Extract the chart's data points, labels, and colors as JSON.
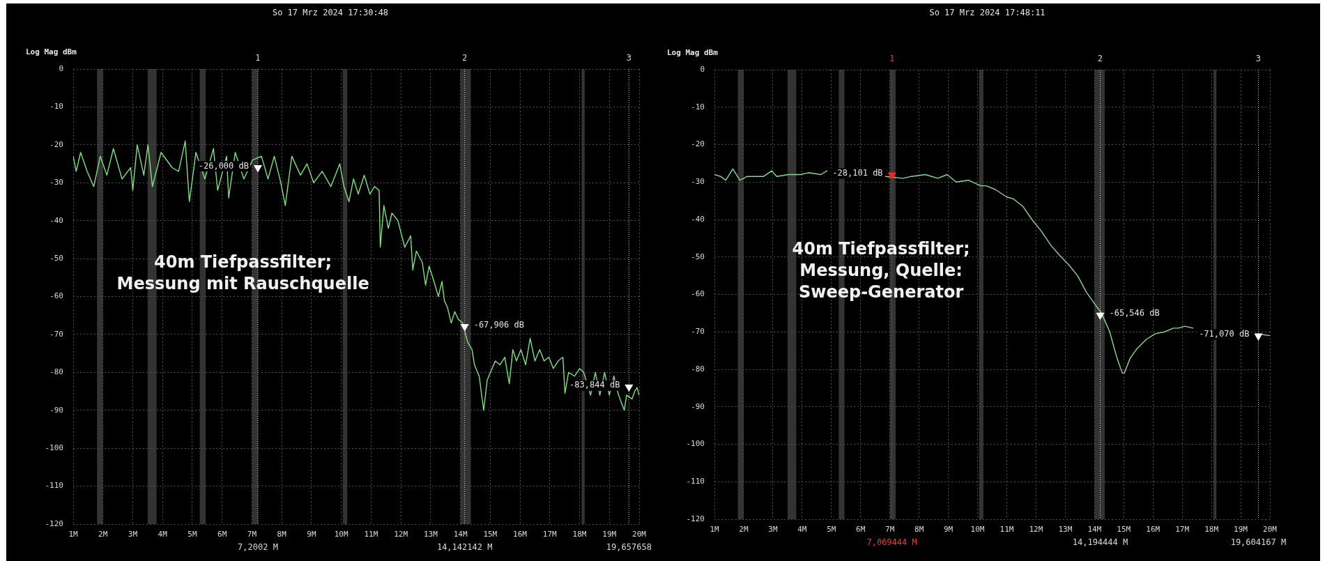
{
  "chart_data": [
    {
      "type": "line",
      "title": "So 17 Mrz 2024 17:30:48",
      "ylabel": "Log Mag dBm",
      "xlim": [
        1,
        20
      ],
      "xticks": [
        {
          "value": 1,
          "label": "1M"
        },
        {
          "value": 2,
          "label": "2M"
        },
        {
          "value": 3,
          "label": "3M"
        },
        {
          "value": 4,
          "label": "4M"
        },
        {
          "value": 5,
          "label": "5M"
        },
        {
          "value": 6,
          "label": "6M"
        },
        {
          "value": 7,
          "label": "7M"
        },
        {
          "value": 8,
          "label": "8M"
        },
        {
          "value": 9,
          "label": "9M"
        },
        {
          "value": 10,
          "label": "10M"
        },
        {
          "value": 11,
          "label": "11M"
        },
        {
          "value": 12,
          "label": "12M"
        },
        {
          "value": 13,
          "label": "13M"
        },
        {
          "value": 14,
          "label": "14M"
        },
        {
          "value": 15,
          "label": "15M"
        },
        {
          "value": 16,
          "label": "16M"
        },
        {
          "value": 17,
          "label": "17M"
        },
        {
          "value": 18,
          "label": "18M"
        },
        {
          "value": 19,
          "label": "19M"
        },
        {
          "value": 20,
          "label": "20M"
        }
      ],
      "ylim": [
        -120,
        0
      ],
      "yticks": [
        -120,
        -110,
        -100,
        -90,
        -80,
        -70,
        -60,
        -50,
        -40,
        -30,
        -20,
        -10,
        0
      ],
      "grid": true,
      "series": [
        {
          "color": "#80e080",
          "x": [
            1.0,
            1.1,
            1.25,
            1.47,
            1.69,
            1.91,
            2.13,
            2.35,
            2.64,
            2.93,
            3.0,
            3.15,
            3.37,
            3.51,
            3.66,
            3.95,
            4.32,
            4.54,
            4.76,
            4.9,
            5.12,
            5.42,
            5.71,
            5.85,
            6.15,
            6.22,
            6.44,
            6.73,
            7.02,
            7.32,
            7.54,
            7.75,
            7.97,
            8.12,
            8.34,
            8.63,
            8.85,
            9.07,
            9.36,
            9.65,
            9.95,
            10.09,
            10.26,
            10.41,
            10.57,
            10.77,
            10.96,
            11.12,
            11.27,
            11.31,
            11.43,
            11.58,
            11.7,
            11.9,
            12.13,
            12.33,
            12.4,
            12.52,
            12.72,
            12.83,
            12.95,
            13.11,
            13.26,
            13.38,
            13.46,
            13.57,
            13.69,
            13.81,
            13.93,
            14.08,
            14.24,
            14.39,
            14.47,
            14.63,
            14.78,
            14.9,
            15.06,
            15.17,
            15.33,
            15.49,
            15.64,
            15.76,
            15.88,
            16.03,
            16.19,
            16.34,
            16.5,
            16.66,
            16.81,
            16.97,
            17.12,
            17.28,
            17.44,
            17.51,
            17.63,
            17.83,
            18.0,
            18.14,
            18.37,
            18.53,
            18.68,
            18.84,
            19.0,
            19.15,
            19.31,
            19.5,
            19.58,
            19.76,
            19.85,
            19.93,
            20.0
          ],
          "values": [
            -23,
            -27,
            -22,
            -27,
            -31,
            -23,
            -28,
            -21,
            -29,
            -26,
            -32,
            -20,
            -28,
            -20,
            -31,
            -22,
            -26,
            -27,
            -19,
            -35,
            -22,
            -29,
            -21,
            -32,
            -23,
            -34,
            -22,
            -29,
            -24,
            -23,
            -29,
            -23,
            -30,
            -36,
            -23,
            -28,
            -25,
            -30,
            -27,
            -31,
            -25,
            -31,
            -35,
            -29,
            -33,
            -28,
            -33,
            -31,
            -32,
            -47,
            -36,
            -42,
            -38,
            -40,
            -47,
            -44,
            -53,
            -48,
            -51,
            -57,
            -52,
            -56,
            -60,
            -56,
            -61,
            -63,
            -67,
            -64,
            -66,
            -67,
            -72,
            -74,
            -78,
            -81,
            -90,
            -82,
            -79,
            -77,
            -78,
            -76,
            -83,
            -74,
            -77,
            -74,
            -78,
            -71,
            -77,
            -74,
            -77,
            -76,
            -79,
            -77,
            -76,
            -85.5,
            -80,
            -81,
            -79,
            -80,
            -86,
            -80,
            -86,
            -80,
            -86,
            -81,
            -86,
            -90,
            -86,
            -87,
            -85,
            -84,
            -86
          ]
        },
        {
          "type": "scatter",
          "marker": "triangle",
          "x": [
            7.2002,
            14.142142,
            19.657658
          ],
          "values": [
            -26,
            -67.906,
            -83.844
          ],
          "colors": [
            "#ffffff",
            "#ffffff",
            "#ffffff"
          ]
        }
      ],
      "bands": [
        {
          "axis": "x",
          "from": 1.8,
          "to": 2.0,
          "color": "#333333"
        },
        {
          "axis": "x",
          "from": 3.5,
          "to": 3.8,
          "color": "#333333"
        },
        {
          "axis": "x",
          "from": 5.25,
          "to": 5.45,
          "color": "#333333"
        },
        {
          "axis": "x",
          "from": 7.0,
          "to": 7.2,
          "color": "#333333"
        },
        {
          "axis": "x",
          "from": 10.05,
          "to": 10.2,
          "color": "#333333"
        },
        {
          "axis": "x",
          "from": 14.0,
          "to": 14.35,
          "color": "#333333"
        },
        {
          "axis": "x",
          "from": 18.07,
          "to": 18.17,
          "color": "#333333"
        }
      ],
      "ref_lines": [
        {
          "axis": "x",
          "value": 7.2002,
          "label": "7,2002 M",
          "color": "#d8d8d8",
          "line_style": "dotted"
        },
        {
          "axis": "x",
          "value": 14.142142,
          "label": "14,142142 M",
          "color": "#d8d8d8",
          "line_style": "dotted"
        },
        {
          "axis": "x",
          "value": 19.657658,
          "label": "19,657658",
          "color": "#d8d8d8",
          "line_style": "dotted"
        }
      ],
      "annotations": [
        "40m Tiefpassfilter; Messung mit Rauschquelle",
        {
          "text": "1",
          "x": 7.2002,
          "y": 0
        },
        {
          "text": "2",
          "x": 14.142142,
          "y": 0
        },
        {
          "text": "3",
          "x": 19.657658,
          "y": 0
        },
        {
          "text": "-26,000 dB",
          "x": 7.2002,
          "y": -26
        },
        {
          "text": "-67,906 dB",
          "x": 14.142142,
          "y": -67.906
        },
        {
          "text": "-83,844 dB",
          "x": 19.657658,
          "y": -83.844
        }
      ]
    },
    {
      "type": "line",
      "title": "So 17 Mrz 2024 17:48:11",
      "ylabel": "Log Mag dBm",
      "xlim": [
        1,
        20
      ],
      "xticks": [
        {
          "value": 1,
          "label": "1M"
        },
        {
          "value": 2,
          "label": "2M"
        },
        {
          "value": 3,
          "label": "3M"
        },
        {
          "value": 4,
          "label": "4M"
        },
        {
          "value": 5,
          "label": "5M"
        },
        {
          "value": 6,
          "label": "6M"
        },
        {
          "value": 7,
          "label": "7M"
        },
        {
          "value": 8,
          "label": "8M"
        },
        {
          "value": 9,
          "label": "9M"
        },
        {
          "value": 10,
          "label": "10M"
        },
        {
          "value": 11,
          "label": "11M"
        },
        {
          "value": 12,
          "label": "12M"
        },
        {
          "value": 13,
          "label": "13M"
        },
        {
          "value": 14,
          "label": "14M"
        },
        {
          "value": 15,
          "label": "15M"
        },
        {
          "value": 16,
          "label": "16M"
        },
        {
          "value": 17,
          "label": "17M"
        },
        {
          "value": 18,
          "label": "18M"
        },
        {
          "value": 19,
          "label": "19M"
        },
        {
          "value": 20,
          "label": "20M"
        }
      ],
      "ylim": [
        -120,
        0
      ],
      "yticks": [
        -120,
        -110,
        -100,
        -90,
        -80,
        -70,
        -60,
        -50,
        -40,
        -30,
        -20,
        -10,
        0
      ],
      "grid": true,
      "series": [
        {
          "color": "#8cd88c",
          "x": [
            1.0,
            1.21,
            1.39,
            1.63,
            1.87,
            2.12,
            2.68,
            2.96,
            3.13,
            3.52,
            3.94,
            4.22,
            4.64,
            4.85,
            5.9,
            6.85,
            7.45,
            7.73,
            8.22,
            8.64,
            8.96,
            9.27,
            9.69,
            10.11,
            10.3,
            10.61,
            11.0,
            11.23,
            11.55,
            11.86,
            12.17,
            12.52,
            12.8,
            13.11,
            13.42,
            13.73,
            14.05,
            14.24,
            14.52,
            14.75,
            14.95,
            15.02,
            15.22,
            15.45,
            15.77,
            16.08,
            16.39,
            16.7,
            16.86,
            17.09,
            17.37,
            18.5,
            19.59,
            20.0
          ],
          "values": [
            -28,
            -28.5,
            -29.5,
            -26.5,
            -29.5,
            -28.5,
            -28.5,
            -27,
            -28.5,
            -28,
            -28,
            -27.5,
            -28,
            -27,
            null,
            -28.5,
            -29,
            -28.5,
            -28,
            -29,
            -28,
            -30,
            -29.5,
            -31,
            -31,
            -32,
            -34,
            -34.5,
            -36.5,
            -40,
            -43,
            -47,
            -49.5,
            -52,
            -55,
            -59.5,
            -63,
            -65,
            -70,
            -76.5,
            -81,
            -81,
            -77,
            -74.5,
            -72,
            -70.5,
            -70,
            -69,
            -69,
            -68.5,
            -69,
            null,
            -70.5,
            -71
          ]
        },
        {
          "type": "scatter",
          "marker": "triangle",
          "x": [
            7.069444,
            14.194444,
            19.604167
          ],
          "values": [
            -28.101,
            -65.546,
            -71.07
          ],
          "colors": [
            "#ff2020",
            "#ffffff",
            "#ffffff"
          ]
        }
      ],
      "bands": [
        {
          "axis": "x",
          "from": 1.8,
          "to": 2.0,
          "color": "#333333"
        },
        {
          "axis": "x",
          "from": 3.5,
          "to": 3.8,
          "color": "#333333"
        },
        {
          "axis": "x",
          "from": 5.25,
          "to": 5.45,
          "color": "#333333"
        },
        {
          "axis": "x",
          "from": 7.0,
          "to": 7.2,
          "color": "#333333"
        },
        {
          "axis": "x",
          "from": 10.05,
          "to": 10.2,
          "color": "#333333"
        },
        {
          "axis": "x",
          "from": 14.0,
          "to": 14.35,
          "color": "#333333"
        },
        {
          "axis": "x",
          "from": 18.07,
          "to": 18.17,
          "color": "#333333"
        }
      ],
      "ref_lines": [
        {
          "axis": "x",
          "value": 7.069444,
          "label": "7,069444 M",
          "color": "#ff3030",
          "line_style": "dotted"
        },
        {
          "axis": "x",
          "value": 14.194444,
          "label": "14,194444 M",
          "color": "#d8d8d8",
          "line_style": "dotted"
        },
        {
          "axis": "x",
          "value": 19.604167,
          "label": "19,604167 M",
          "color": "#d8d8d8",
          "line_style": "dotted"
        }
      ],
      "annotations": [
        "40m Tiefpassfilter; Messung, Quelle: Sweep-Generator",
        {
          "text": "1",
          "x": 7.069444,
          "y": 0
        },
        {
          "text": "2",
          "x": 14.194444,
          "y": 0
        },
        {
          "text": "3",
          "x": 19.604167,
          "y": 0
        },
        {
          "text": "-28,101 dB",
          "x": 7.069444,
          "y": -28.101
        },
        {
          "text": "-65,546 dB",
          "x": 14.194444,
          "y": -65.546
        },
        {
          "text": "-71,070 dB",
          "x": 19.604167,
          "y": -71.07
        }
      ]
    }
  ]
}
